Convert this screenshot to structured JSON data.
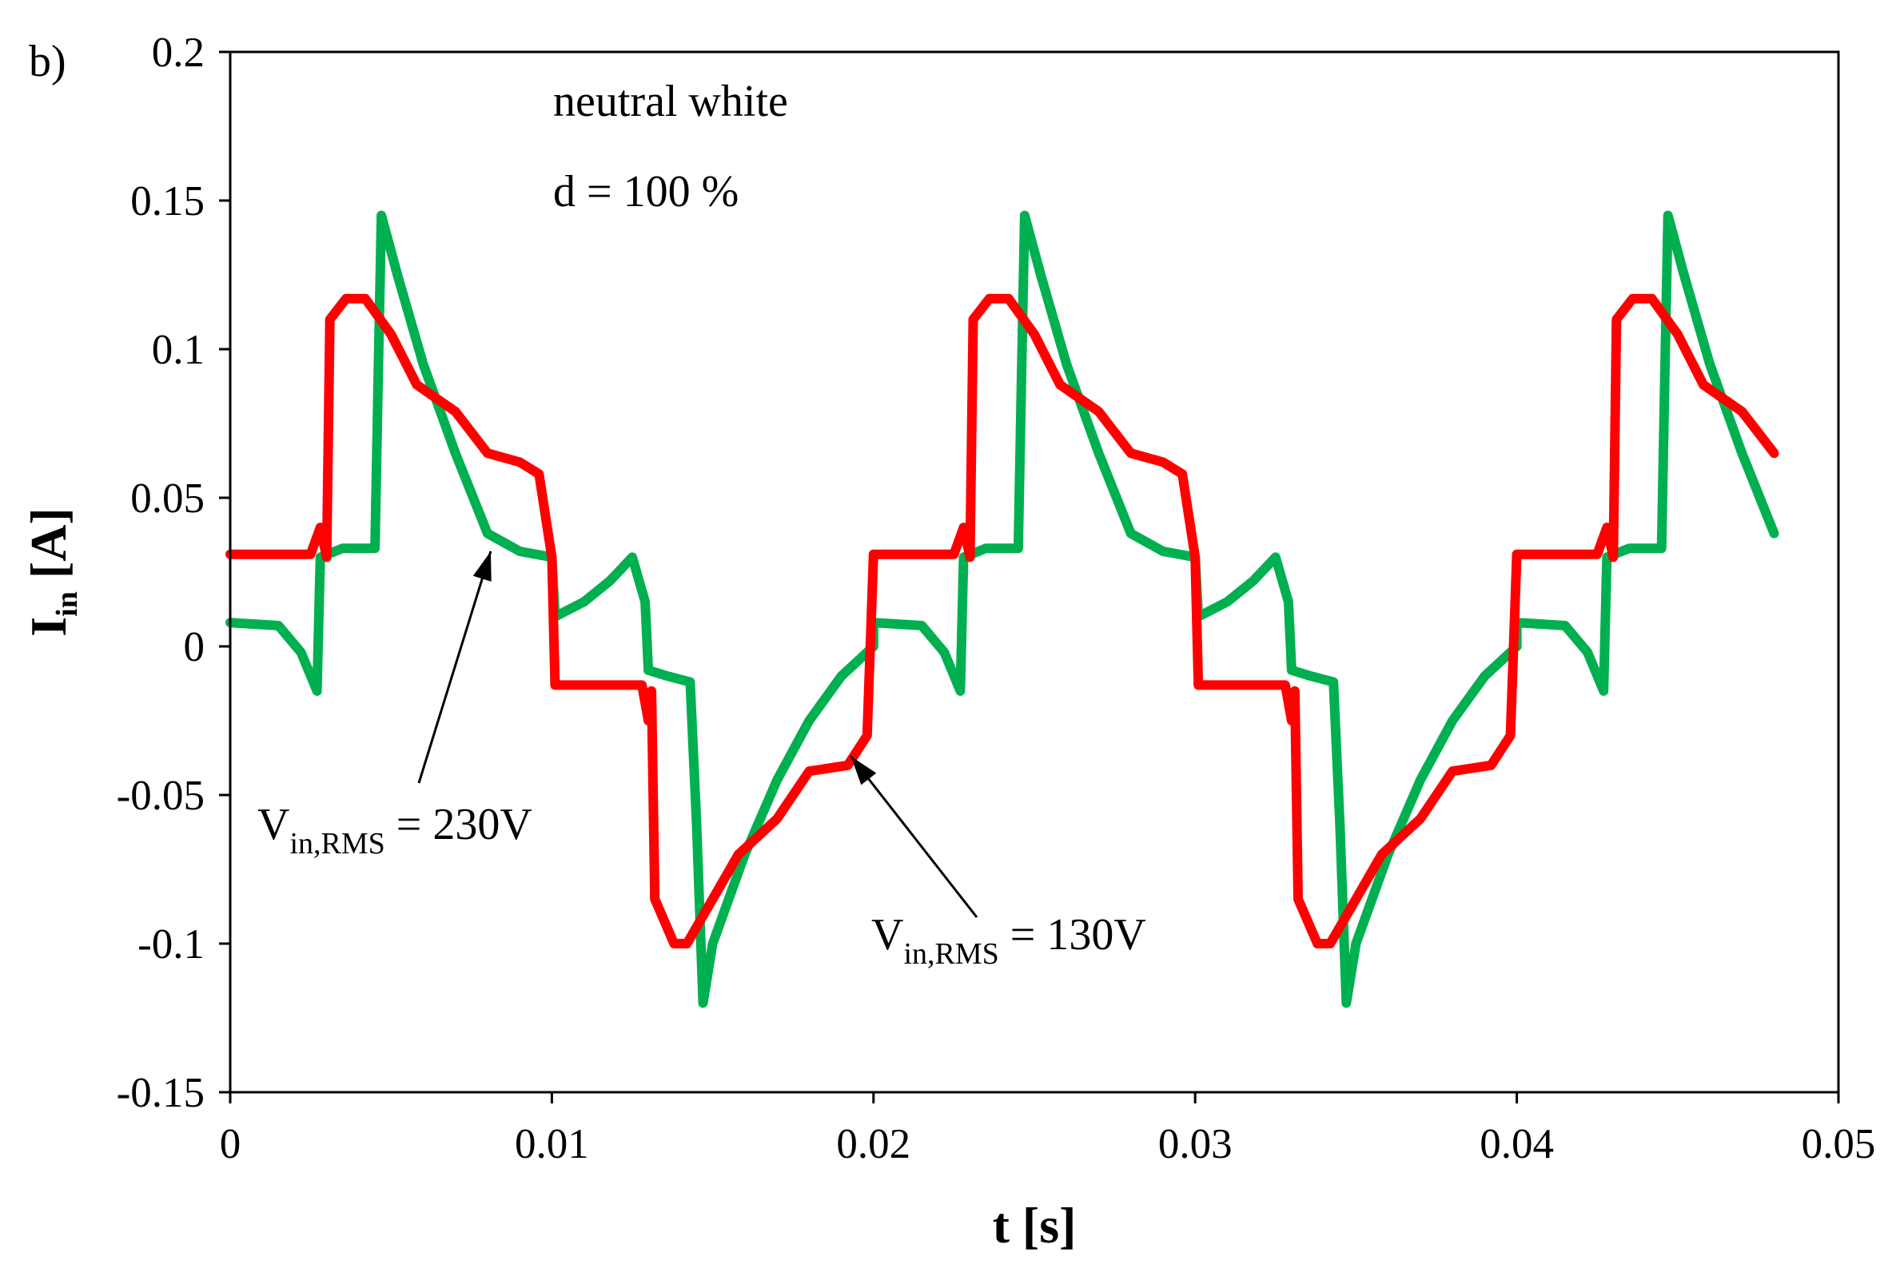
{
  "chart_data": {
    "type": "line",
    "panel_label": "b)",
    "title": "",
    "xlabel": "t [s]",
    "ylabel": {
      "main": "I",
      "sub": "in",
      "unit": " [A]"
    },
    "xlim": [
      0,
      0.05
    ],
    "ylim": [
      -0.15,
      0.2
    ],
    "x_ticks": [
      0,
      0.01,
      0.02,
      0.03,
      0.04,
      0.05
    ],
    "x_tick_labels": [
      "0",
      "0.01",
      "0.02",
      "0.03",
      "0.04",
      "0.05"
    ],
    "y_ticks": [
      -0.15,
      -0.1,
      -0.05,
      0,
      0.05,
      0.1,
      0.15,
      0.2
    ],
    "y_tick_labels": [
      "-0.15",
      "-0.1",
      "-0.05",
      "0",
      "0.05",
      "0.1",
      "0.15",
      "0.2"
    ],
    "grid": false,
    "annotations": [
      {
        "id": "light",
        "text": "neutral white"
      },
      {
        "id": "duty",
        "text": "d = 100 %"
      }
    ],
    "series": [
      {
        "name": "Vin,RMS = 230V",
        "label": {
          "main": "V",
          "sub": "in,RMS",
          "rest": " = 230V"
        },
        "color": "#00b050",
        "arrow_target": [
          0.0081,
          0.032
        ],
        "period": 0.02,
        "points": [
          [
            0,
            0.008
          ],
          [
            0.0015,
            0.007
          ],
          [
            0.0022,
            -0.002
          ],
          [
            0.0027,
            -0.015
          ],
          [
            0.0028,
            0.03
          ],
          [
            0.0035,
            0.033
          ],
          [
            0.0045,
            0.033
          ],
          [
            0.0046,
            0.09
          ],
          [
            0.0047,
            0.145
          ],
          [
            0.0052,
            0.125
          ],
          [
            0.006,
            0.095
          ],
          [
            0.007,
            0.065
          ],
          [
            0.008,
            0.038
          ],
          [
            0.009,
            0.032
          ],
          [
            0.01,
            0.03
          ],
          [
            0.0101,
            0.01
          ],
          [
            0.011,
            0.015
          ],
          [
            0.0118,
            0.022
          ],
          [
            0.0125,
            0.03
          ],
          [
            0.0129,
            0.015
          ],
          [
            0.013,
            -0.008
          ],
          [
            0.0136,
            -0.01
          ],
          [
            0.0143,
            -0.012
          ],
          [
            0.0145,
            -0.06
          ],
          [
            0.0147,
            -0.12
          ],
          [
            0.015,
            -0.1
          ],
          [
            0.016,
            -0.07
          ],
          [
            0.017,
            -0.045
          ],
          [
            0.018,
            -0.025
          ],
          [
            0.019,
            -0.01
          ],
          [
            0.02,
            0.0
          ]
        ]
      },
      {
        "name": "Vin,RMS = 130V",
        "label": {
          "main": "V",
          "sub": "in,RMS",
          "rest": " = 130V"
        },
        "color": "#ff0000",
        "arrow_target": [
          0.0193,
          -0.037
        ],
        "period": 0.02,
        "points": [
          [
            0,
            0.031
          ],
          [
            0.0025,
            0.031
          ],
          [
            0.0028,
            0.04
          ],
          [
            0.003,
            0.03
          ],
          [
            0.0031,
            0.11
          ],
          [
            0.0036,
            0.117
          ],
          [
            0.0042,
            0.117
          ],
          [
            0.005,
            0.105
          ],
          [
            0.0058,
            0.088
          ],
          [
            0.007,
            0.079
          ],
          [
            0.008,
            0.065
          ],
          [
            0.009,
            0.062
          ],
          [
            0.0096,
            0.058
          ],
          [
            0.01,
            0.03
          ],
          [
            0.0101,
            -0.013
          ],
          [
            0.0128,
            -0.013
          ],
          [
            0.013,
            -0.025
          ],
          [
            0.0131,
            -0.015
          ],
          [
            0.0132,
            -0.085
          ],
          [
            0.0138,
            -0.1
          ],
          [
            0.0142,
            -0.1
          ],
          [
            0.015,
            -0.085
          ],
          [
            0.0158,
            -0.07
          ],
          [
            0.017,
            -0.058
          ],
          [
            0.018,
            -0.042
          ],
          [
            0.0192,
            -0.04
          ],
          [
            0.0198,
            -0.03
          ],
          [
            0.02,
            0.031
          ]
        ]
      }
    ]
  }
}
